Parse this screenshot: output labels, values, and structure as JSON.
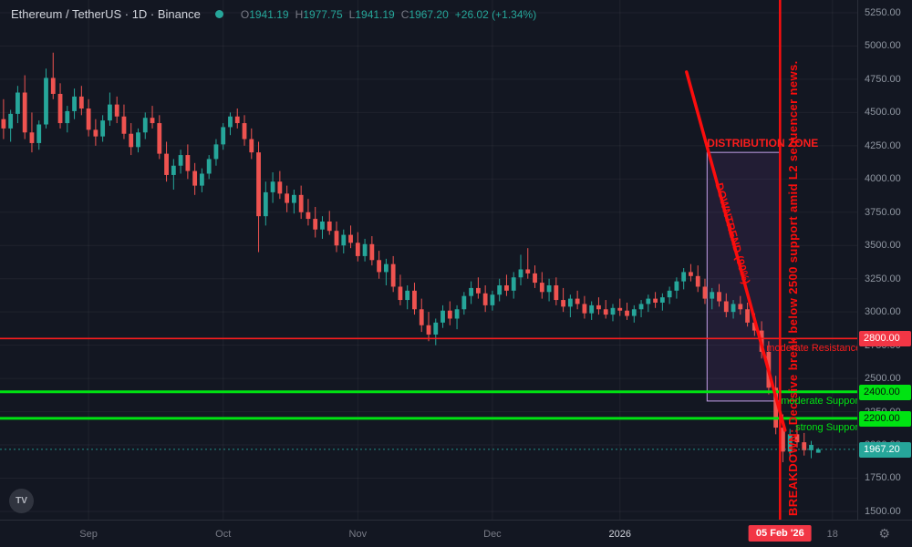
{
  "header": {
    "symbol_title": "Ethereum / TetherUS · 1D · Binance",
    "ohlc": {
      "o_label": "O",
      "o": "1941.19",
      "h_label": "H",
      "h": "1977.75",
      "l_label": "L",
      "l": "1941.19",
      "c_label": "C",
      "c": "1967.20",
      "change": "+26.02 (+1.34%)"
    }
  },
  "footer": {
    "gear_icon": "⚙",
    "logo_label": "TV"
  },
  "chart_data": {
    "type": "candlestick",
    "title": "Ethereum / TetherUS · 1D · Binance",
    "up_color": "#26a69a",
    "down_color": "#ef5350",
    "grid_color": "rgba(255,255,255,0.05)",
    "price_axis": {
      "min": 1438,
      "max": 5346,
      "ticks": [
        5250,
        5000,
        4750,
        4500,
        4250,
        4000,
        3750,
        3500,
        3250,
        3000,
        2750,
        2500,
        2250,
        2000,
        1750,
        1500
      ]
    },
    "time_axis": {
      "slots": 121,
      "ticks": [
        {
          "index": 12,
          "label": "Sep",
          "year": false
        },
        {
          "index": 31,
          "label": "Oct",
          "year": false
        },
        {
          "index": 50,
          "label": "Nov",
          "year": false
        },
        {
          "index": 69,
          "label": "Dec",
          "year": false
        },
        {
          "index": 87,
          "label": "2026",
          "year": true
        },
        {
          "index": 117,
          "label": "18",
          "year": false
        }
      ]
    },
    "candles": [
      [
        4450,
        4600,
        4300,
        4380
      ],
      [
        4380,
        4520,
        4280,
        4490
      ],
      [
        4490,
        4700,
        4420,
        4650
      ],
      [
        4650,
        4780,
        4300,
        4350
      ],
      [
        4350,
        4500,
        4200,
        4270
      ],
      [
        4270,
        4440,
        4220,
        4410
      ],
      [
        4410,
        4830,
        4380,
        4760
      ],
      [
        4760,
        4950,
        4600,
        4640
      ],
      [
        4640,
        4720,
        4380,
        4420
      ],
      [
        4420,
        4550,
        4350,
        4510
      ],
      [
        4510,
        4680,
        4450,
        4620
      ],
      [
        4620,
        4700,
        4480,
        4530
      ],
      [
        4530,
        4600,
        4320,
        4370
      ],
      [
        4370,
        4450,
        4250,
        4320
      ],
      [
        4320,
        4480,
        4280,
        4440
      ],
      [
        4440,
        4650,
        4400,
        4560
      ],
      [
        4560,
        4620,
        4420,
        4470
      ],
      [
        4470,
        4560,
        4300,
        4340
      ],
      [
        4340,
        4420,
        4180,
        4240
      ],
      [
        4240,
        4380,
        4200,
        4350
      ],
      [
        4350,
        4500,
        4300,
        4460
      ],
      [
        4460,
        4550,
        4380,
        4420
      ],
      [
        4420,
        4480,
        4150,
        4190
      ],
      [
        4190,
        4280,
        3980,
        4030
      ],
      [
        4030,
        4150,
        3920,
        4100
      ],
      [
        4100,
        4220,
        4040,
        4180
      ],
      [
        4180,
        4260,
        4000,
        4060
      ],
      [
        4060,
        4120,
        3880,
        3950
      ],
      [
        3950,
        4080,
        3900,
        4040
      ],
      [
        4040,
        4180,
        4000,
        4150
      ],
      [
        4150,
        4300,
        4100,
        4260
      ],
      [
        4260,
        4420,
        4220,
        4390
      ],
      [
        4390,
        4500,
        4330,
        4470
      ],
      [
        4470,
        4530,
        4380,
        4420
      ],
      [
        4420,
        4480,
        4250,
        4300
      ],
      [
        4300,
        4380,
        4150,
        4200
      ],
      [
        4200,
        4280,
        3450,
        3720
      ],
      [
        3720,
        3980,
        3650,
        3900
      ],
      [
        3900,
        4050,
        3820,
        3980
      ],
      [
        3980,
        4060,
        3850,
        3890
      ],
      [
        3890,
        3950,
        3750,
        3820
      ],
      [
        3820,
        3920,
        3740,
        3880
      ],
      [
        3880,
        3950,
        3700,
        3750
      ],
      [
        3750,
        3850,
        3650,
        3700
      ],
      [
        3700,
        3790,
        3560,
        3620
      ],
      [
        3620,
        3720,
        3550,
        3680
      ],
      [
        3680,
        3760,
        3580,
        3610
      ],
      [
        3610,
        3680,
        3450,
        3500
      ],
      [
        3500,
        3620,
        3440,
        3580
      ],
      [
        3580,
        3650,
        3480,
        3520
      ],
      [
        3520,
        3600,
        3380,
        3420
      ],
      [
        3420,
        3550,
        3380,
        3510
      ],
      [
        3510,
        3570,
        3350,
        3390
      ],
      [
        3390,
        3460,
        3250,
        3300
      ],
      [
        3300,
        3400,
        3200,
        3360
      ],
      [
        3360,
        3420,
        3150,
        3190
      ],
      [
        3190,
        3280,
        3050,
        3090
      ],
      [
        3090,
        3200,
        3020,
        3160
      ],
      [
        3160,
        3220,
        2980,
        3020
      ],
      [
        3020,
        3100,
        2850,
        2900
      ],
      [
        2900,
        3000,
        2780,
        2830
      ],
      [
        2830,
        2950,
        2750,
        2920
      ],
      [
        2920,
        3050,
        2880,
        3010
      ],
      [
        3010,
        3080,
        2900,
        2950
      ],
      [
        2950,
        3050,
        2870,
        3020
      ],
      [
        3020,
        3150,
        2980,
        3120
      ],
      [
        3120,
        3230,
        3060,
        3180
      ],
      [
        3180,
        3260,
        3100,
        3140
      ],
      [
        3140,
        3200,
        3000,
        3050
      ],
      [
        3050,
        3160,
        3010,
        3130
      ],
      [
        3130,
        3250,
        3080,
        3200
      ],
      [
        3200,
        3280,
        3120,
        3160
      ],
      [
        3160,
        3300,
        3100,
        3260
      ],
      [
        3260,
        3430,
        3200,
        3320
      ],
      [
        3320,
        3480,
        3250,
        3290
      ],
      [
        3290,
        3350,
        3180,
        3220
      ],
      [
        3220,
        3300,
        3100,
        3150
      ],
      [
        3150,
        3250,
        3080,
        3200
      ],
      [
        3200,
        3260,
        3050,
        3090
      ],
      [
        3090,
        3180,
        3000,
        3040
      ],
      [
        3040,
        3130,
        2960,
        3100
      ],
      [
        3100,
        3160,
        3020,
        3060
      ],
      [
        3060,
        3120,
        2950,
        2990
      ],
      [
        2990,
        3080,
        2940,
        3050
      ],
      [
        3050,
        3110,
        2980,
        3020
      ],
      [
        3020,
        3090,
        2950,
        2980
      ],
      [
        2980,
        3060,
        2930,
        3030
      ],
      [
        3030,
        3100,
        2970,
        3010
      ],
      [
        3010,
        3070,
        2940,
        2970
      ],
      [
        2970,
        3050,
        2920,
        3020
      ],
      [
        3020,
        3090,
        2960,
        3060
      ],
      [
        3060,
        3130,
        3000,
        3100
      ],
      [
        3100,
        3150,
        3030,
        3070
      ],
      [
        3070,
        3140,
        3010,
        3110
      ],
      [
        3110,
        3190,
        3060,
        3160
      ],
      [
        3160,
        3260,
        3100,
        3230
      ],
      [
        3230,
        3330,
        3170,
        3300
      ],
      [
        3300,
        3360,
        3230,
        3270
      ],
      [
        3270,
        3350,
        3150,
        3190
      ],
      [
        3190,
        3250,
        3060,
        3100
      ],
      [
        3100,
        3180,
        3020,
        3150
      ],
      [
        3150,
        3210,
        3040,
        3080
      ],
      [
        3080,
        3140,
        2960,
        3000
      ],
      [
        3000,
        3090,
        2950,
        3060
      ],
      [
        3060,
        3120,
        2980,
        3020
      ],
      [
        3020,
        3070,
        2890,
        2920
      ],
      [
        2920,
        2990,
        2820,
        2860
      ],
      [
        2860,
        2930,
        2650,
        2700
      ],
      [
        2700,
        2780,
        2380,
        2430
      ],
      [
        2430,
        2520,
        2080,
        2130
      ],
      [
        2130,
        2230,
        1870,
        1950
      ],
      [
        1950,
        2120,
        1900,
        2080
      ],
      [
        2080,
        2150,
        1980,
        2020
      ],
      [
        2020,
        2090,
        1920,
        1960
      ],
      [
        1960,
        2030,
        1900,
        2000
      ],
      [
        1941.19,
        1977.75,
        1941.19,
        1967.2
      ]
    ],
    "annotations": {
      "resistance": {
        "price": 2800,
        "label": "moderate Resistance: $2,800",
        "tag": "2800.00",
        "color": "#fb1d1d",
        "tag_color": "#f23645"
      },
      "supports": [
        {
          "price": 2400,
          "label": "moderate Support: $2,400",
          "tag": "2400.00"
        },
        {
          "price": 2200,
          "label": "strong Support: $2,200",
          "tag": "2200.00"
        }
      ],
      "support_color": "#00e312",
      "last_price": {
        "price": 1967.2,
        "tag": "1967.20",
        "color": "#26a69a"
      },
      "event_line": {
        "index": 109.6,
        "date_label": "05 Feb '26",
        "color": "#fb0d0d",
        "tag_color": "#f23645",
        "text": "BREAKDOWN: Decisive break below 2500 support amid L2 sequencer news."
      },
      "trendline": {
        "from_index": 96.4,
        "from_price": 4805,
        "to_index": 110.3,
        "to_price": 2110,
        "label": "DOWNTREND (90%)",
        "color": "#fb0d0d"
      },
      "zone": {
        "from_index": 99.3,
        "to_index": 109.6,
        "top_price": 4200,
        "bottom_price": 2330,
        "label": "DISTRIBUTION ZONE",
        "border_color": "#c2a0e8",
        "fill_color": "rgba(170,90,220,0.10)",
        "label_color": "#fb1d1d"
      }
    }
  }
}
